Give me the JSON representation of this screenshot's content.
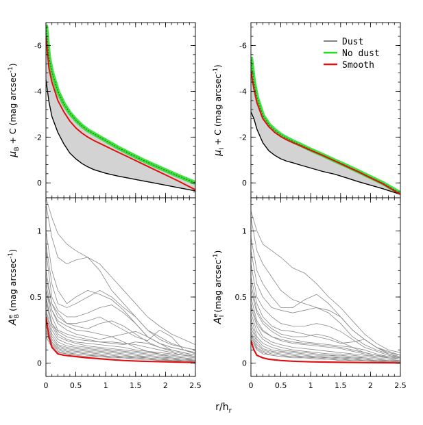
{
  "figure": {
    "xlabel": "r/h",
    "xlabel_sub": "r"
  },
  "legend": {
    "dust": "Dust",
    "nodust": "No dust",
    "smooth": "Smooth"
  },
  "colors": {
    "dust": "#808080",
    "nodust": "#22dd22",
    "smooth": "#e01010",
    "band": "#d3d3d3",
    "dustLine": "#000000",
    "spaghetti": "#888888"
  },
  "chart_data": [
    {
      "type": "line",
      "panel": "top-left",
      "ylabel": {
        "pre": "μ",
        "sub": "B",
        "post": " + C (mag arcsec",
        "sup": "-1",
        "end": ")"
      },
      "xlim": [
        0,
        2.5
      ],
      "ylim": [
        0.65,
        -7.0
      ],
      "yticks": [
        0,
        -2,
        -4,
        -6
      ],
      "ytick_labels": [
        "0",
        "-2",
        "-4",
        "-6"
      ],
      "x": [
        0,
        0.05,
        0.1,
        0.2,
        0.3,
        0.4,
        0.5,
        0.6,
        0.7,
        0.8,
        1.0,
        1.2,
        1.4,
        1.6,
        1.8,
        2.0,
        2.2,
        2.5
      ],
      "series": [
        {
          "name": "No dust",
          "values": [
            -6.9,
            -5.5,
            -4.85,
            -4.0,
            -3.45,
            -3.05,
            -2.75,
            -2.5,
            -2.3,
            -2.15,
            -1.85,
            -1.55,
            -1.28,
            -1.02,
            -0.78,
            -0.55,
            -0.32,
            0.0
          ]
        },
        {
          "name": "Smooth",
          "values": [
            -6.4,
            -5.0,
            -4.4,
            -3.6,
            -3.1,
            -2.7,
            -2.4,
            -2.18,
            -2.0,
            -1.85,
            -1.6,
            -1.35,
            -1.1,
            -0.85,
            -0.6,
            -0.35,
            -0.1,
            0.3
          ]
        },
        {
          "name": "Dust",
          "values": [
            -4.5,
            -3.55,
            -2.9,
            -2.2,
            -1.7,
            -1.3,
            -1.05,
            -0.85,
            -0.7,
            -0.58,
            -0.42,
            -0.3,
            -0.2,
            -0.1,
            0.0,
            0.1,
            0.2,
            0.35
          ]
        }
      ]
    },
    {
      "type": "line",
      "panel": "top-right",
      "ylabel": {
        "pre": "μ",
        "sub": "I",
        "post": " + C (mag arcsec",
        "sup": "-1",
        "end": ")"
      },
      "xlim": [
        0,
        2.5
      ],
      "ylim": [
        0.65,
        -7.0
      ],
      "yticks": [
        0,
        -2,
        -4,
        -6
      ],
      "ytick_labels": [
        "0",
        "-2",
        "-4",
        "-6"
      ],
      "x": [
        0,
        0.05,
        0.1,
        0.2,
        0.3,
        0.4,
        0.5,
        0.6,
        0.7,
        0.8,
        1.0,
        1.2,
        1.4,
        1.6,
        1.8,
        2.0,
        2.2,
        2.5
      ],
      "series": [
        {
          "name": "No dust",
          "values": [
            -5.5,
            -4.4,
            -3.75,
            -2.95,
            -2.55,
            -2.3,
            -2.1,
            -1.95,
            -1.82,
            -1.7,
            -1.45,
            -1.22,
            -0.98,
            -0.75,
            -0.5,
            -0.25,
            0.0,
            0.45
          ]
        },
        {
          "name": "Smooth",
          "values": [
            -4.9,
            -4.1,
            -3.5,
            -2.8,
            -2.45,
            -2.2,
            -2.02,
            -1.88,
            -1.76,
            -1.65,
            -1.42,
            -1.2,
            -0.96,
            -0.72,
            -0.48,
            -0.22,
            0.03,
            0.5
          ]
        },
        {
          "name": "Dust",
          "values": [
            -3.1,
            -2.8,
            -2.35,
            -1.75,
            -1.4,
            -1.2,
            -1.05,
            -0.95,
            -0.88,
            -0.8,
            -0.65,
            -0.5,
            -0.38,
            -0.22,
            -0.05,
            0.1,
            0.25,
            0.5
          ]
        }
      ]
    },
    {
      "type": "line",
      "panel": "bottom-left",
      "ylabel": {
        "pre": "A",
        "sub": "B",
        "sup": "e",
        "post": " (mag arcsec",
        "sup2": "-1",
        "end": ")"
      },
      "xlim": [
        0,
        2.5
      ],
      "ylim": [
        -0.1,
        1.25
      ],
      "yticks": [
        0,
        0.5,
        1
      ],
      "ytick_labels": [
        "0",
        "0.5",
        "1"
      ],
      "xticks": [
        0,
        0.5,
        1,
        1.5,
        2,
        2.5
      ],
      "xtick_labels": [
        "0",
        "0.5",
        "1",
        "1.5",
        "2",
        "2.5"
      ],
      "x": [
        0,
        0.05,
        0.1,
        0.2,
        0.3,
        0.5,
        0.7,
        1.0,
        1.3,
        1.6,
        2.0,
        2.5
      ],
      "series": [
        {
          "name": "Smooth",
          "values": [
            0.35,
            0.2,
            0.12,
            0.07,
            0.06,
            0.05,
            0.04,
            0.03,
            0.02,
            0.015,
            0.01,
            0.005
          ]
        }
      ]
    },
    {
      "type": "line",
      "panel": "bottom-right",
      "ylabel": {
        "pre": "A",
        "sub": "I",
        "sup": "e",
        "post": " (mag arcsec",
        "sup2": "-1",
        "end": ")"
      },
      "xlim": [
        0,
        2.5
      ],
      "ylim": [
        -0.1,
        1.25
      ],
      "yticks": [
        0,
        0.5,
        1
      ],
      "ytick_labels": [
        "0",
        "0.5",
        "1"
      ],
      "xticks": [
        0,
        0.5,
        1,
        1.5,
        2,
        2.5
      ],
      "xtick_labels": [
        "0",
        "0.5",
        "1",
        "1.5",
        "2",
        "2.5"
      ],
      "x": [
        0,
        0.05,
        0.1,
        0.2,
        0.3,
        0.5,
        0.7,
        1.0,
        1.3,
        1.6,
        2.0,
        2.5
      ],
      "series": [
        {
          "name": "Smooth",
          "values": [
            0.17,
            0.1,
            0.06,
            0.04,
            0.03,
            0.02,
            0.015,
            0.01,
            0.008,
            0.006,
            0.004,
            0.002
          ]
        }
      ]
    }
  ],
  "dust_curves": {
    "x": [
      0,
      0.1,
      0.2,
      0.35,
      0.5,
      0.7,
      0.9,
      1.1,
      1.3,
      1.5,
      1.7,
      1.9,
      2.1,
      2.3,
      2.5
    ],
    "B": [
      [
        1.25,
        1.1,
        0.98,
        0.9,
        0.85,
        0.8,
        0.75,
        0.65,
        0.55,
        0.45,
        0.35,
        0.28,
        0.22,
        0.18,
        0.14
      ],
      [
        1.2,
        0.95,
        0.8,
        0.75,
        0.78,
        0.8,
        0.7,
        0.55,
        0.45,
        0.35,
        0.25,
        0.2,
        0.15,
        0.12,
        0.1
      ],
      [
        1.0,
        0.7,
        0.55,
        0.45,
        0.5,
        0.55,
        0.52,
        0.48,
        0.4,
        0.3,
        0.2,
        0.15,
        0.12,
        0.1,
        0.08
      ],
      [
        0.9,
        0.6,
        0.45,
        0.42,
        0.45,
        0.5,
        0.55,
        0.5,
        0.42,
        0.35,
        0.25,
        0.18,
        0.14,
        0.12,
        0.1
      ],
      [
        0.85,
        0.5,
        0.4,
        0.35,
        0.35,
        0.38,
        0.42,
        0.44,
        0.38,
        0.3,
        0.2,
        0.15,
        0.12,
        0.1,
        0.08
      ],
      [
        0.7,
        0.45,
        0.35,
        0.3,
        0.3,
        0.32,
        0.35,
        0.3,
        0.25,
        0.2,
        0.17,
        0.25,
        0.2,
        0.1,
        0.07
      ],
      [
        0.6,
        0.4,
        0.3,
        0.25,
        0.22,
        0.2,
        0.18,
        0.2,
        0.22,
        0.24,
        0.2,
        0.15,
        0.1,
        0.08,
        0.06
      ],
      [
        0.55,
        0.35,
        0.25,
        0.22,
        0.2,
        0.18,
        0.16,
        0.15,
        0.14,
        0.16,
        0.15,
        0.12,
        0.1,
        0.08,
        0.06
      ],
      [
        0.5,
        0.3,
        0.22,
        0.18,
        0.16,
        0.15,
        0.14,
        0.13,
        0.12,
        0.1,
        0.09,
        0.08,
        0.07,
        0.06,
        0.05
      ],
      [
        0.45,
        0.28,
        0.2,
        0.17,
        0.15,
        0.13,
        0.12,
        0.11,
        0.1,
        0.09,
        0.08,
        0.07,
        0.06,
        0.05,
        0.04
      ],
      [
        0.4,
        0.25,
        0.18,
        0.15,
        0.13,
        0.12,
        0.11,
        0.1,
        0.09,
        0.08,
        0.07,
        0.06,
        0.05,
        0.04,
        0.03
      ],
      [
        0.38,
        0.22,
        0.16,
        0.13,
        0.12,
        0.11,
        0.1,
        0.09,
        0.08,
        0.07,
        0.06,
        0.05,
        0.04,
        0.03,
        0.03
      ],
      [
        0.35,
        0.2,
        0.14,
        0.12,
        0.11,
        0.1,
        0.09,
        0.08,
        0.07,
        0.06,
        0.05,
        0.04,
        0.04,
        0.03,
        0.02
      ],
      [
        0.32,
        0.18,
        0.13,
        0.11,
        0.1,
        0.09,
        0.08,
        0.07,
        0.06,
        0.05,
        0.05,
        0.04,
        0.03,
        0.03,
        0.02
      ],
      [
        0.3,
        0.16,
        0.12,
        0.1,
        0.09,
        0.08,
        0.07,
        0.06,
        0.05,
        0.05,
        0.04,
        0.03,
        0.03,
        0.02,
        0.02
      ],
      [
        0.28,
        0.15,
        0.11,
        0.09,
        0.08,
        0.07,
        0.06,
        0.05,
        0.05,
        0.04,
        0.04,
        0.03,
        0.02,
        0.02,
        0.01
      ],
      [
        0.25,
        0.14,
        0.1,
        0.08,
        0.07,
        0.06,
        0.06,
        0.05,
        0.04,
        0.04,
        0.03,
        0.03,
        0.02,
        0.02,
        0.01
      ],
      [
        0.23,
        0.13,
        0.09,
        0.07,
        0.07,
        0.06,
        0.05,
        0.05,
        0.04,
        0.03,
        0.03,
        0.02,
        0.02,
        0.01,
        0.01
      ],
      [
        0.2,
        0.12,
        0.08,
        0.07,
        0.06,
        0.05,
        0.05,
        0.04,
        0.04,
        0.03,
        0.03,
        0.02,
        0.02,
        0.01,
        0.0
      ],
      [
        0.55,
        0.4,
        0.32,
        0.28,
        0.25,
        0.24,
        0.22,
        0.2,
        0.16,
        0.12,
        0.09,
        0.07,
        0.05,
        0.04,
        0.03
      ],
      [
        0.65,
        0.45,
        0.38,
        0.3,
        0.28,
        0.26,
        0.3,
        0.32,
        0.28,
        0.22,
        0.16,
        0.12,
        0.09,
        0.07,
        0.05
      ],
      [
        0.48,
        0.3,
        0.24,
        0.2,
        0.18,
        0.17,
        0.16,
        0.16,
        0.15,
        0.14,
        0.12,
        0.1,
        0.08,
        0.06,
        0.05
      ]
    ],
    "I": [
      [
        1.15,
        1.0,
        0.9,
        0.85,
        0.8,
        0.72,
        0.68,
        0.6,
        0.5,
        0.42,
        0.32,
        0.22,
        0.15,
        0.1,
        0.08
      ],
      [
        1.1,
        0.85,
        0.75,
        0.65,
        0.55,
        0.48,
        0.45,
        0.42,
        0.4,
        0.35,
        0.25,
        0.18,
        0.12,
        0.09,
        0.06
      ],
      [
        0.95,
        0.7,
        0.6,
        0.5,
        0.42,
        0.42,
        0.48,
        0.52,
        0.45,
        0.35,
        0.25,
        0.18,
        0.12,
        0.08,
        0.06
      ],
      [
        0.85,
        0.6,
        0.5,
        0.42,
        0.4,
        0.38,
        0.4,
        0.42,
        0.38,
        0.3,
        0.2,
        0.14,
        0.1,
        0.07,
        0.05
      ],
      [
        0.75,
        0.5,
        0.42,
        0.35,
        0.3,
        0.28,
        0.28,
        0.3,
        0.28,
        0.24,
        0.18,
        0.12,
        0.09,
        0.06,
        0.04
      ],
      [
        0.65,
        0.45,
        0.35,
        0.28,
        0.25,
        0.24,
        0.22,
        0.2,
        0.18,
        0.15,
        0.16,
        0.18,
        0.12,
        0.07,
        0.04
      ],
      [
        0.55,
        0.38,
        0.3,
        0.24,
        0.2,
        0.18,
        0.16,
        0.15,
        0.14,
        0.13,
        0.12,
        0.1,
        0.07,
        0.05,
        0.03
      ],
      [
        0.5,
        0.32,
        0.25,
        0.2,
        0.17,
        0.15,
        0.14,
        0.13,
        0.12,
        0.11,
        0.09,
        0.07,
        0.05,
        0.04,
        0.03
      ],
      [
        0.42,
        0.28,
        0.2,
        0.16,
        0.14,
        0.12,
        0.11,
        0.1,
        0.09,
        0.08,
        0.07,
        0.06,
        0.05,
        0.04,
        0.03
      ],
      [
        0.38,
        0.24,
        0.18,
        0.14,
        0.12,
        0.1,
        0.09,
        0.08,
        0.07,
        0.07,
        0.06,
        0.05,
        0.04,
        0.03,
        0.02
      ],
      [
        0.34,
        0.2,
        0.15,
        0.12,
        0.1,
        0.09,
        0.08,
        0.07,
        0.06,
        0.06,
        0.05,
        0.04,
        0.03,
        0.02,
        0.02
      ],
      [
        0.3,
        0.18,
        0.13,
        0.1,
        0.09,
        0.08,
        0.07,
        0.06,
        0.06,
        0.05,
        0.04,
        0.04,
        0.03,
        0.02,
        0.01
      ],
      [
        0.27,
        0.16,
        0.11,
        0.09,
        0.08,
        0.07,
        0.06,
        0.05,
        0.05,
        0.04,
        0.04,
        0.03,
        0.02,
        0.02,
        0.01
      ],
      [
        0.24,
        0.14,
        0.1,
        0.08,
        0.07,
        0.06,
        0.05,
        0.05,
        0.04,
        0.04,
        0.03,
        0.03,
        0.02,
        0.01,
        0.01
      ],
      [
        0.22,
        0.12,
        0.09,
        0.07,
        0.06,
        0.05,
        0.05,
        0.04,
        0.04,
        0.03,
        0.03,
        0.02,
        0.02,
        0.01,
        0.01
      ],
      [
        0.2,
        0.11,
        0.08,
        0.06,
        0.05,
        0.05,
        0.04,
        0.04,
        0.03,
        0.03,
        0.02,
        0.02,
        0.01,
        0.01,
        0.0
      ],
      [
        0.18,
        0.1,
        0.07,
        0.06,
        0.05,
        0.04,
        0.04,
        0.03,
        0.03,
        0.02,
        0.02,
        0.02,
        0.01,
        0.01,
        0.0
      ],
      [
        0.6,
        0.4,
        0.32,
        0.26,
        0.22,
        0.2,
        0.2,
        0.22,
        0.2,
        0.16,
        0.12,
        0.08,
        0.06,
        0.04,
        0.03
      ],
      [
        0.45,
        0.3,
        0.24,
        0.2,
        0.18,
        0.16,
        0.15,
        0.14,
        0.13,
        0.12,
        0.1,
        0.08,
        0.06,
        0.05,
        0.04
      ]
    ]
  }
}
